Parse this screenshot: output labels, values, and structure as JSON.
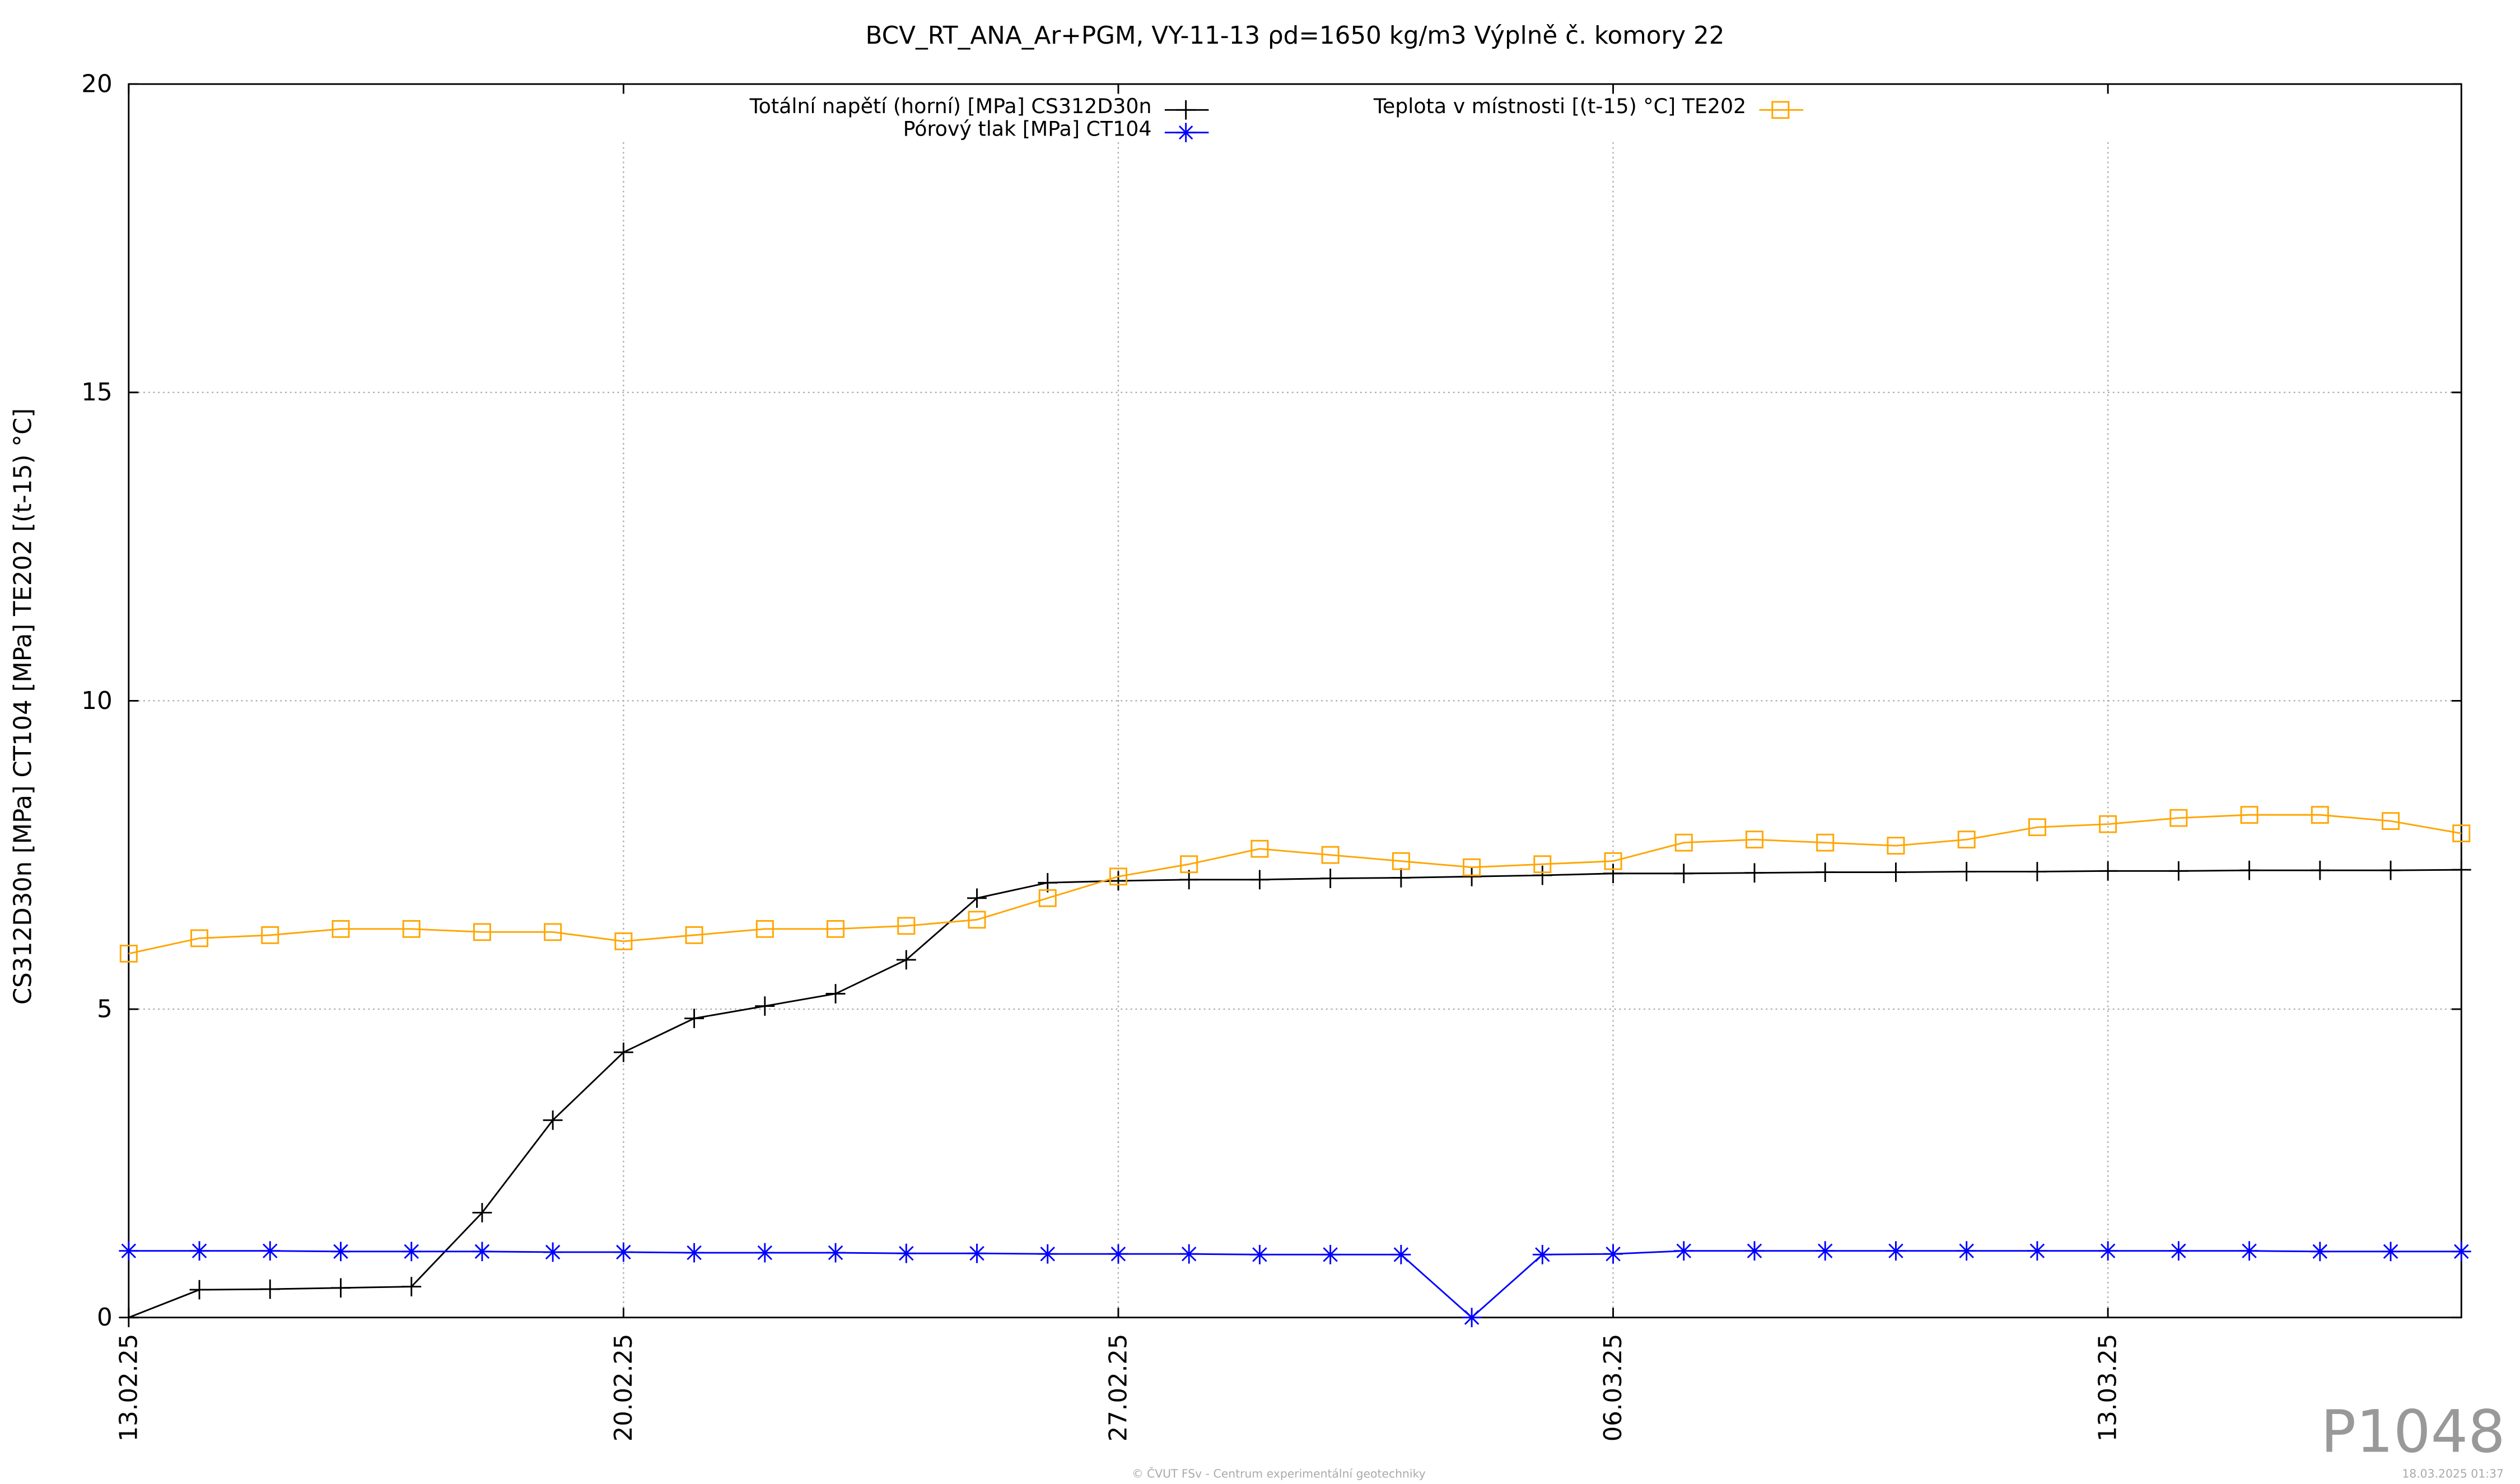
{
  "chart_data": {
    "type": "line",
    "title": "BCV_RT_ANA_Ar+PGM, VY-11-13 ρd=1650 kg/m3 Výplně č. komory 22",
    "y_label": "CS312D30n [MPa] CT104 [MPa] TE202 [(t-15) °C]",
    "x": [
      "13.02.25",
      "14.02.25",
      "15.02.25",
      "16.02.25",
      "17.02.25",
      "18.02.25",
      "19.02.25",
      "20.02.25",
      "21.02.25",
      "22.02.25",
      "23.02.25",
      "24.02.25",
      "25.02.25",
      "26.02.25",
      "27.02.25",
      "28.02.25",
      "01.03.25",
      "02.03.25",
      "03.03.25",
      "04.03.25",
      "05.03.25",
      "06.03.25",
      "07.03.25",
      "08.03.25",
      "09.03.25",
      "10.03.25",
      "11.03.25",
      "12.03.25",
      "13.03.25",
      "14.03.25",
      "15.03.25",
      "16.03.25",
      "17.03.25",
      "18.03.25"
    ],
    "xlim": [
      "13.02.25",
      "18.03.25"
    ],
    "xticks": [
      "13.02.25",
      "20.02.25",
      "27.02.25",
      "06.03.25",
      "13.03.25"
    ],
    "ylim": [
      0,
      20
    ],
    "yticks": [
      0,
      5,
      10,
      15,
      20
    ],
    "grid": true,
    "legend": "top",
    "series": [
      {
        "name": "Totální napětí (horní) [MPa] CS312D30n",
        "color": "#000000",
        "marker": "plus",
        "values": [
          0,
          0.45,
          0.46,
          0.48,
          0.5,
          1.7,
          3.2,
          4.3,
          4.85,
          5.05,
          5.25,
          5.8,
          6.8,
          7.05,
          7.08,
          7.1,
          7.1,
          7.12,
          7.13,
          7.15,
          7.17,
          7.2,
          7.2,
          7.21,
          7.22,
          7.22,
          7.23,
          7.23,
          7.24,
          7.24,
          7.25,
          7.25,
          7.25,
          7.26
        ]
      },
      {
        "name": "Pórový tlak [MPa] CT104",
        "color": "#0000ff",
        "marker": "star",
        "values": [
          1.08,
          1.08,
          1.08,
          1.07,
          1.07,
          1.07,
          1.06,
          1.06,
          1.05,
          1.05,
          1.05,
          1.04,
          1.04,
          1.03,
          1.03,
          1.03,
          1.02,
          1.02,
          1.02,
          0,
          1.02,
          1.03,
          1.08,
          1.08,
          1.08,
          1.08,
          1.08,
          1.08,
          1.08,
          1.08,
          1.08,
          1.07,
          1.07,
          1.07
        ]
      },
      {
        "name": "Teplota v místnosti [(t-15) °C] TE202",
        "color": "#ffa500",
        "marker": "square",
        "values": [
          5.9,
          6.15,
          6.2,
          6.3,
          6.3,
          6.25,
          6.25,
          6.1,
          6.2,
          6.3,
          6.3,
          6.35,
          6.45,
          6.8,
          7.15,
          7.35,
          7.6,
          7.5,
          7.4,
          7.3,
          7.35,
          7.4,
          7.7,
          7.75,
          7.7,
          7.65,
          7.75,
          7.95,
          8.0,
          8.1,
          8.15,
          8.15,
          8.05,
          7.85
        ]
      }
    ],
    "watermark": "P1048",
    "footer_left": "© ČVUT FSv - Centrum experimentální geotechniky",
    "footer_right": "18.03.2025 01:37"
  }
}
